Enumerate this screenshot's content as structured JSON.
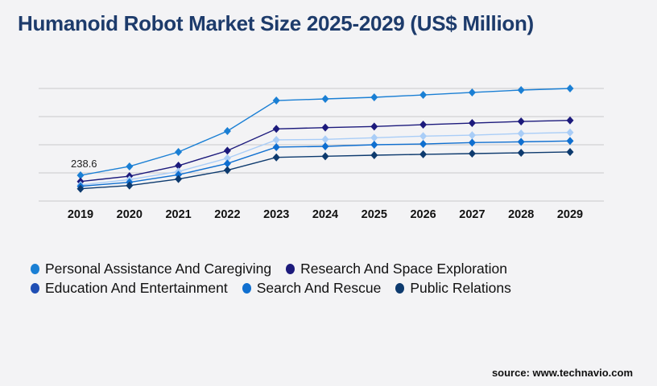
{
  "title": "Humanoid Robot Market Size 2025-2029 (US$ Million)",
  "source": "source: www.technavio.com",
  "chart_data": {
    "type": "line",
    "x": [
      "2019",
      "2020",
      "2021",
      "2022",
      "2023",
      "2024",
      "2025",
      "2026",
      "2027",
      "2028",
      "2029"
    ],
    "ylim": [
      0,
      1044
    ],
    "grid": true,
    "legend_placement": "bottom",
    "annotations": [
      {
        "series": 0,
        "x": "2019",
        "label": "238.6"
      }
    ],
    "series": [
      {
        "name": "Personal Assistance And Caregiving",
        "color": "#1a7fd4",
        "legend_color": "#1a7fd4",
        "values": [
          238.6,
          321,
          455,
          649,
          932,
          947,
          962,
          984,
          1007,
          1029,
          1044
        ]
      },
      {
        "name": "Research And Space Exploration",
        "color": "#1c1a7c",
        "legend_color": "#1c1a7c",
        "values": [
          181,
          231,
          328,
          467,
          669,
          681,
          691,
          708,
          723,
          738,
          748
        ]
      },
      {
        "name": "Education And Entertainment",
        "color": "#a9cdf7",
        "legend_color": "#1f4eb4",
        "values": [
          149,
          199,
          274,
          397,
          567,
          572,
          587,
          602,
          611,
          626,
          636
        ]
      },
      {
        "name": "Search And Rescue",
        "color": "#0f6fd0",
        "legend_color": "#0f6fd0",
        "values": [
          137,
          174,
          244,
          348,
          500,
          507,
          522,
          529,
          542,
          549,
          557
        ]
      },
      {
        "name": "Public Relations",
        "color": "#0d3a6e",
        "legend_color": "#0d3a6e",
        "values": [
          114,
          144,
          204,
          286,
          405,
          415,
          425,
          433,
          440,
          447,
          455
        ]
      }
    ]
  }
}
